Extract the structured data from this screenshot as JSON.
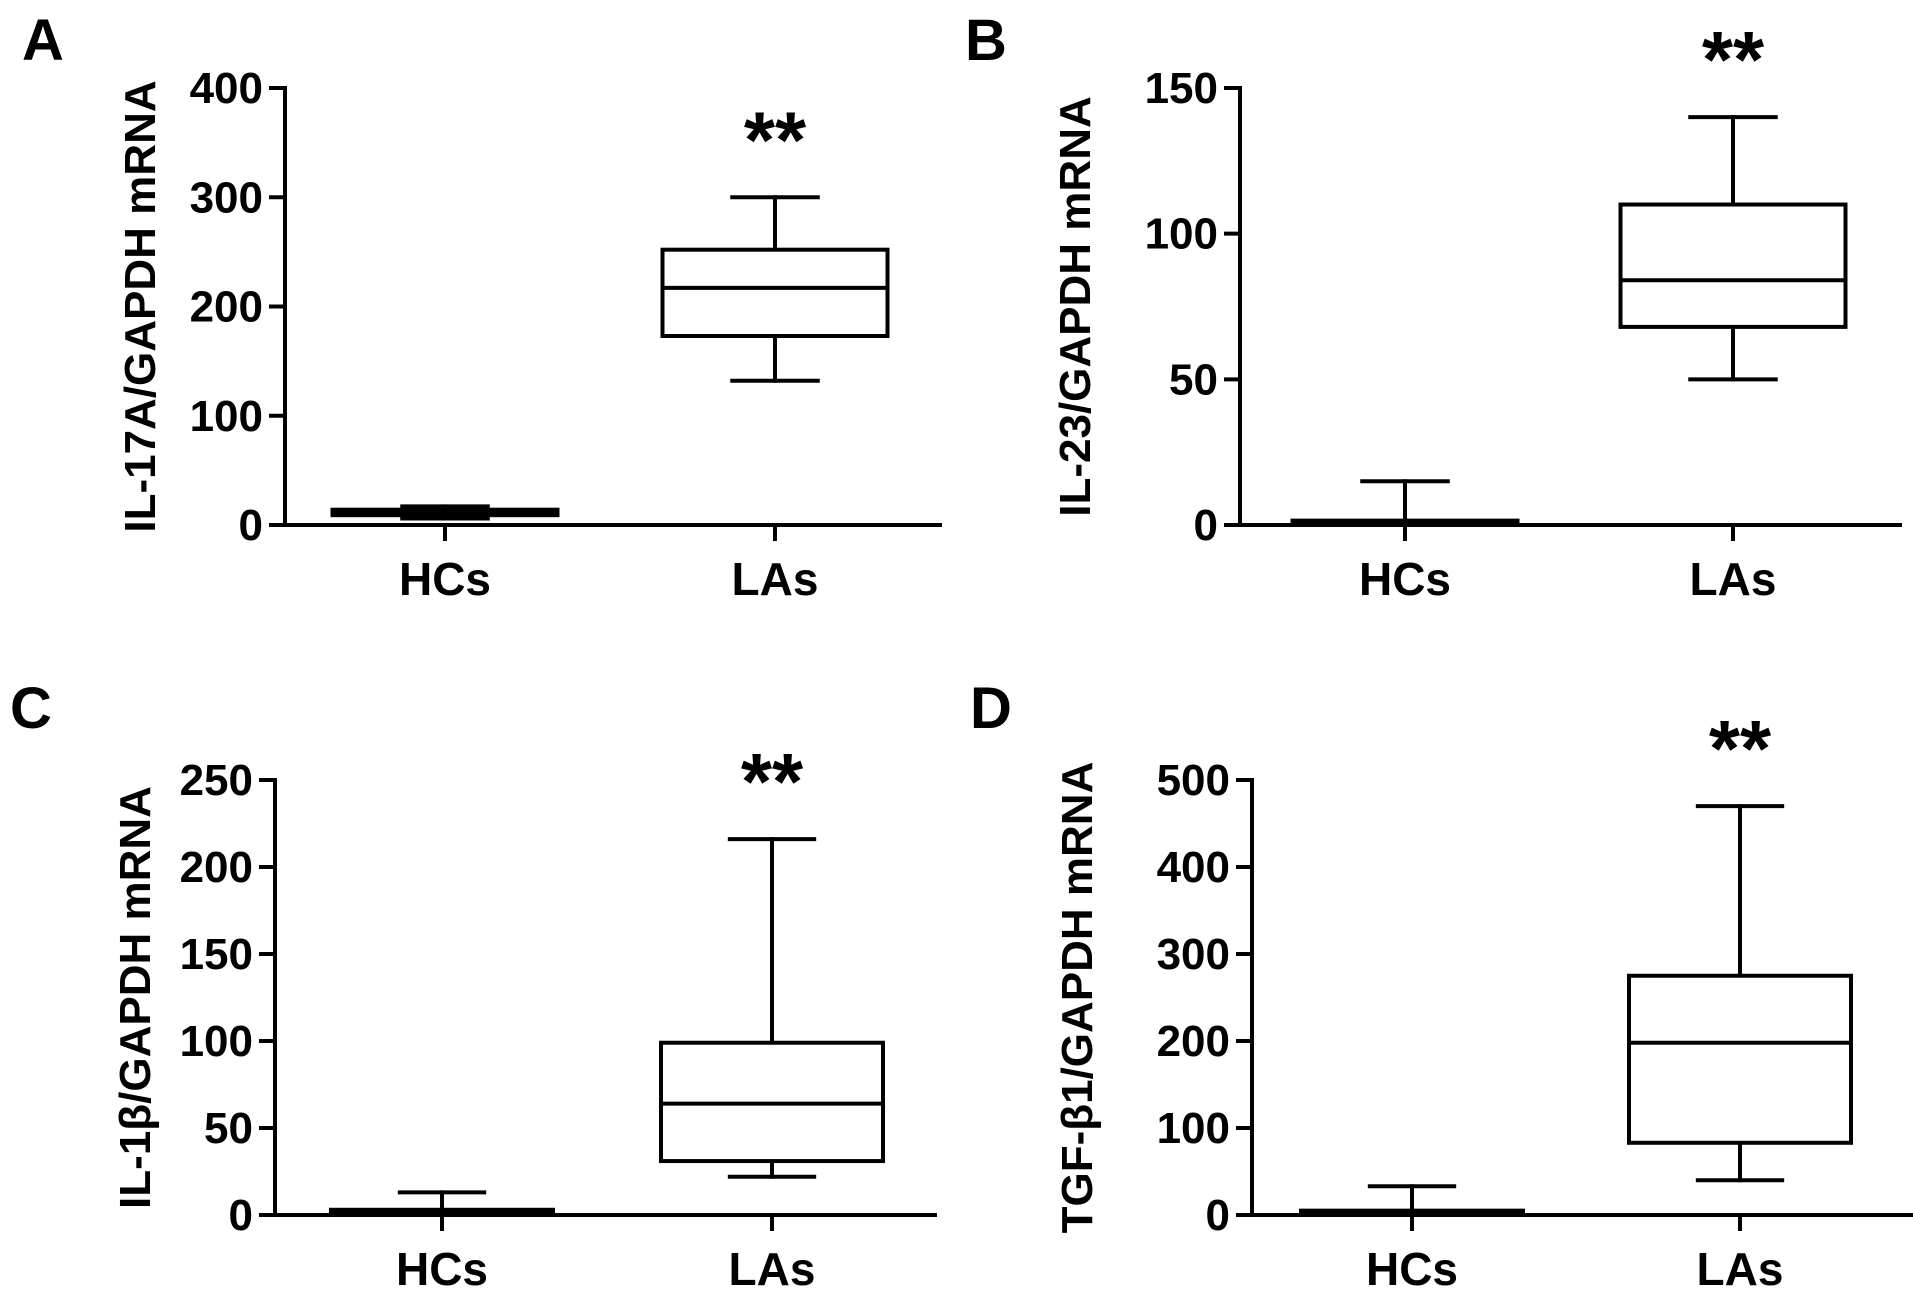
{
  "colors": {
    "ink": "#000000",
    "background": "#ffffff",
    "box_fill": "#ffffff"
  },
  "chart_data": [
    {
      "type": "box",
      "panel_label": "A",
      "ylabel": "IL-17A/GAPDH mRNA",
      "xlabel": "",
      "ylim": [
        0,
        400
      ],
      "yticks": [
        0,
        100,
        200,
        300,
        400
      ],
      "ytick_labels": [
        "0",
        "100",
        "200",
        "300",
        "400"
      ],
      "categories": [
        "HCs",
        "LAs"
      ],
      "boxes": [
        {
          "category": "HCs",
          "min": 6,
          "q1": 9,
          "median": 11,
          "q3": 14,
          "max": 17,
          "significance": ""
        },
        {
          "category": "LAs",
          "min": 132,
          "q1": 173,
          "median": 217,
          "q3": 252,
          "max": 300,
          "significance": "**"
        }
      ]
    },
    {
      "type": "box",
      "panel_label": "B",
      "ylabel": "IL-23/GAPDH mRNA",
      "xlabel": "",
      "ylim": [
        0,
        150
      ],
      "yticks": [
        0,
        50,
        100,
        150
      ],
      "ytick_labels": [
        "0",
        "50",
        "100",
        "150"
      ],
      "categories": [
        "HCs",
        "LAs"
      ],
      "boxes": [
        {
          "category": "HCs",
          "min": 0,
          "q1": 0.5,
          "median": 1,
          "q3": 1.5,
          "max": 15,
          "significance": ""
        },
        {
          "category": "LAs",
          "min": 50,
          "q1": 68,
          "median": 84,
          "q3": 110,
          "max": 140,
          "significance": "**"
        }
      ]
    },
    {
      "type": "box",
      "panel_label": "C",
      "ylabel": "IL-1β/GAPDH mRNA",
      "xlabel": "",
      "ylim": [
        0,
        250
      ],
      "yticks": [
        0,
        50,
        100,
        150,
        200,
        250
      ],
      "ytick_labels": [
        "0",
        "50",
        "100",
        "150",
        "200",
        "250"
      ],
      "categories": [
        "HCs",
        "LAs"
      ],
      "boxes": [
        {
          "category": "HCs",
          "min": 0,
          "q1": 1,
          "median": 2,
          "q3": 3,
          "max": 13,
          "significance": ""
        },
        {
          "category": "LAs",
          "min": 22,
          "q1": 31,
          "median": 64,
          "q3": 99,
          "max": 216,
          "significance": "**"
        }
      ]
    },
    {
      "type": "box",
      "panel_label": "D",
      "ylabel": "TGF-β1/GAPDH mRNA",
      "xlabel": "",
      "ylim": [
        0,
        500
      ],
      "yticks": [
        0,
        100,
        200,
        300,
        400,
        500
      ],
      "ytick_labels": [
        "0",
        "100",
        "200",
        "300",
        "400",
        "500"
      ],
      "categories": [
        "HCs",
        "LAs"
      ],
      "boxes": [
        {
          "category": "HCs",
          "min": 0,
          "q1": 1,
          "median": 3,
          "q3": 5,
          "max": 33,
          "significance": ""
        },
        {
          "category": "LAs",
          "min": 40,
          "q1": 83,
          "median": 198,
          "q3": 275,
          "max": 470,
          "significance": "**"
        }
      ]
    }
  ]
}
